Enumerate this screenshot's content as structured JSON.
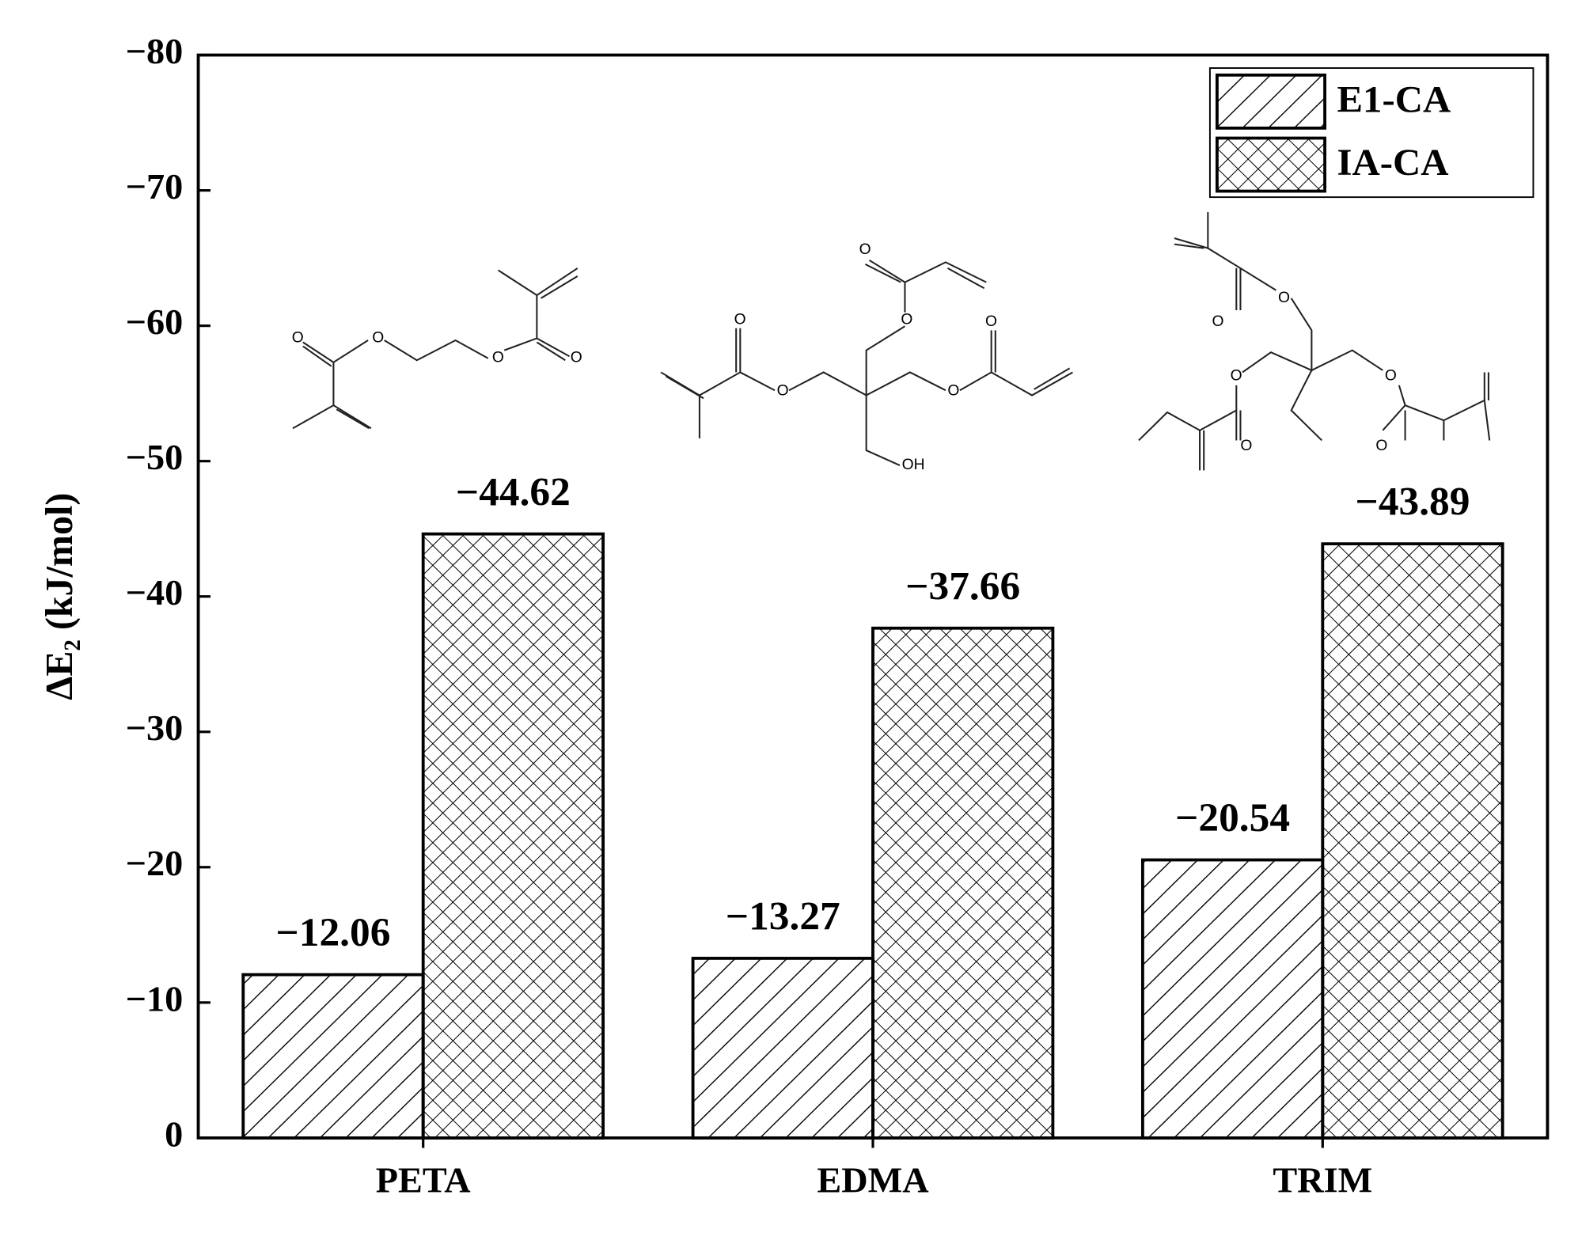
{
  "chart_data": {
    "type": "bar",
    "y_label": "ΔE₂ (kJ/mol)",
    "categories": [
      "PETA",
      "EDMA",
      "TRIM"
    ],
    "series": [
      {
        "name": "E1-CA",
        "color": "#000000",
        "hatch": "/",
        "values": [
          -12.06,
          -13.27,
          -20.54
        ],
        "value_labels": [
          "−12.06",
          "−13.27",
          "−20.54"
        ]
      },
      {
        "name": "IA-CA",
        "color": "#000000",
        "hatch": "x",
        "values": [
          -44.62,
          -37.66,
          -43.89
        ],
        "value_labels": [
          "−44.62",
          "−37.66",
          "−43.89"
        ]
      }
    ],
    "ylim": [
      0,
      -80
    ],
    "yticks": [
      0,
      {
        "value": -10,
        "label": "−10"
      },
      {
        "value": -20,
        "label": "−20"
      },
      {
        "value": -30,
        "label": "−30"
      },
      {
        "value": -40,
        "label": "−40"
      },
      {
        "value": -50,
        "label": "−50"
      },
      {
        "value": -60,
        "label": "−60"
      },
      {
        "value": -70,
        "label": "−70"
      },
      {
        "value": -80,
        "label": "−80"
      }
    ],
    "grid": false,
    "legend": "upper right",
    "atom_labels": [
      "O",
      "OH"
    ]
  }
}
